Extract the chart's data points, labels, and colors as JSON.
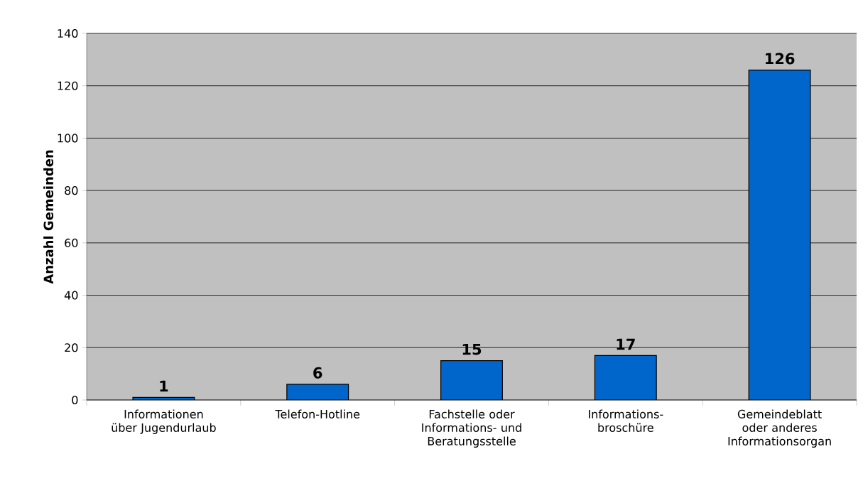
{
  "chart_data": {
    "type": "bar",
    "ylabel": "Anzahl Gemeinden",
    "categories": [
      "Informationen über Jugendurlaub",
      "Telefon-Hotline",
      "Fachstelle oder Informations- und Beratungsstelle",
      "Informations-broschüre",
      "Gemeindeblatt oder anderes Informationsorgan"
    ],
    "values": [
      1,
      6,
      15,
      17,
      126
    ],
    "color": "#0066cc",
    "ylim": [
      0,
      140
    ],
    "yticks": [
      0,
      20,
      40,
      60,
      80,
      100,
      120,
      140
    ],
    "grid": "y",
    "data_labels": true
  }
}
